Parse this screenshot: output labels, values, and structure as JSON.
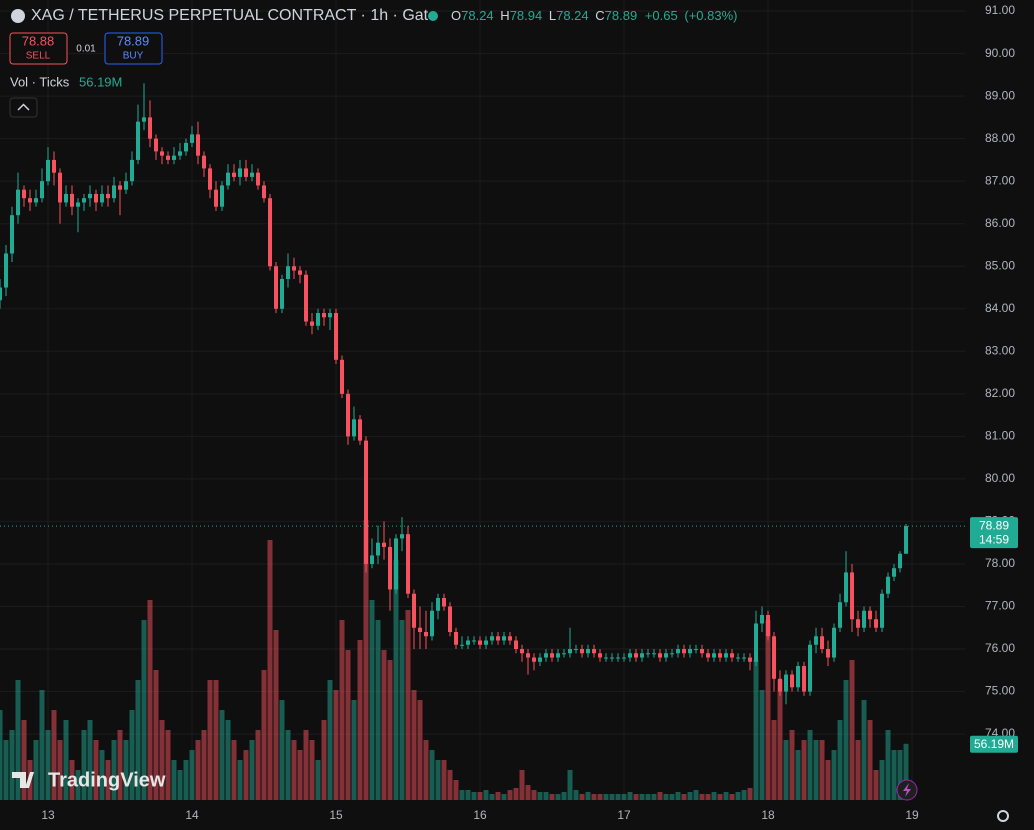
{
  "chart_data": {
    "type": "candlestick",
    "title": "XAG / TETHERUS PERPETUAL CONTRACT · 1h · Gate",
    "header": {
      "open_label": "O",
      "open": 78.24,
      "high_label": "H",
      "high": 78.94,
      "low_label": "L",
      "low": 78.24,
      "close_label": "C",
      "close": 78.89,
      "change": "+0.65",
      "change_pct": "(+0.83%)"
    },
    "sell": {
      "price": 78.88,
      "label": "SELL"
    },
    "spread": 0.01,
    "buy": {
      "price": 78.89,
      "label": "BUY"
    },
    "volume_title": "Vol · Ticks",
    "volume_label": "56.19M",
    "last_price": {
      "value": 78.89,
      "countdown": "14:59"
    },
    "watermark": "TradingView",
    "up_color": "#22ab94",
    "down_color": "#f7525f",
    "x": [
      -8,
      -7,
      -6,
      -5,
      -4,
      -3,
      -2,
      -1,
      0,
      1,
      2,
      3,
      4,
      5,
      6,
      7,
      8,
      9,
      10,
      11,
      12,
      13,
      14,
      15,
      16,
      17,
      18,
      19,
      20,
      21,
      22,
      23,
      24,
      25,
      26,
      27,
      28,
      29,
      30,
      31,
      32,
      33,
      34,
      35,
      36,
      37,
      38,
      39,
      40,
      41,
      42,
      43,
      44,
      45,
      46,
      47,
      48,
      49,
      50,
      51,
      52,
      53,
      54,
      55,
      56,
      57,
      58,
      59,
      60,
      61,
      62,
      63,
      64,
      65,
      66,
      67,
      68,
      69,
      70,
      71,
      72,
      73,
      74,
      75,
      76,
      77,
      78,
      79,
      80,
      81,
      82,
      83,
      84,
      85,
      86,
      87,
      88,
      89,
      90,
      91,
      92,
      93,
      94,
      95,
      96,
      97,
      98,
      99,
      100,
      101,
      102,
      103,
      104,
      105,
      106,
      107,
      108,
      109,
      110,
      111,
      112,
      113,
      114,
      115,
      116,
      117,
      118,
      119,
      120,
      121,
      122,
      123,
      124,
      125,
      126,
      127,
      128,
      129,
      130,
      131,
      132,
      133,
      134,
      135,
      136,
      137,
      138,
      139,
      140,
      141,
      142,
      143
    ],
    "open": [
      84.2,
      84.5,
      85.3,
      86.2,
      86.8,
      86.6,
      86.5,
      86.6,
      87.0,
      87.5,
      87.2,
      86.5,
      86.7,
      86.4,
      86.5,
      86.6,
      86.7,
      86.5,
      86.7,
      86.6,
      86.9,
      86.8,
      87.0,
      87.5,
      88.4,
      88.5,
      88.0,
      87.7,
      87.6,
      87.5,
      87.6,
      87.7,
      87.9,
      88.1,
      87.6,
      87.3,
      86.8,
      86.4,
      86.9,
      87.2,
      87.1,
      87.3,
      87.1,
      87.2,
      86.9,
      86.6,
      85.0,
      84.0,
      84.7,
      85.0,
      84.9,
      84.8,
      83.7,
      83.6,
      83.9,
      83.8,
      83.9,
      82.8,
      82.0,
      81.0,
      81.4,
      80.9,
      78.0,
      78.2,
      78.5,
      78.4,
      77.4,
      78.6,
      78.7,
      77.3,
      76.5,
      76.4,
      76.3,
      76.9,
      77.2,
      77.0,
      76.4,
      76.1,
      76.1,
      76.2,
      76.2,
      76.1,
      76.2,
      76.3,
      76.2,
      76.3,
      76.2,
      76.0,
      75.9,
      75.8,
      75.7,
      75.8,
      75.9,
      75.8,
      75.9,
      75.9,
      76.0,
      76.0,
      75.9,
      76.0,
      75.9,
      75.8,
      75.8,
      75.8,
      75.8,
      75.8,
      75.9,
      75.8,
      75.9,
      75.9,
      75.9,
      75.8,
      75.9,
      75.9,
      76.0,
      75.9,
      76.0,
      76.0,
      75.9,
      75.8,
      75.9,
      75.8,
      75.9,
      75.8,
      75.8,
      75.8,
      75.7,
      76.6,
      76.8,
      76.3,
      75.3,
      75.0,
      75.4,
      75.1,
      75.6,
      75.0,
      76.1,
      76.3,
      76.0,
      75.8,
      76.5,
      77.1,
      77.8,
      76.7,
      76.5,
      76.9,
      76.7,
      76.5,
      77.3,
      77.7,
      77.9,
      78.24
    ],
    "high": [
      84.7,
      85.5,
      86.4,
      87.2,
      86.9,
      86.8,
      86.8,
      87.3,
      87.8,
      87.7,
      87.3,
      86.9,
      86.9,
      86.6,
      86.7,
      86.9,
      86.8,
      86.9,
      86.9,
      87.1,
      87.0,
      87.2,
      87.7,
      88.8,
      89.3,
      88.9,
      88.1,
      87.8,
      87.7,
      87.8,
      87.9,
      88.0,
      88.3,
      88.4,
      87.7,
      87.4,
      87.0,
      87.0,
      87.4,
      87.4,
      87.5,
      87.5,
      87.4,
      87.3,
      87.0,
      86.7,
      85.1,
      84.8,
      85.3,
      85.2,
      85.0,
      84.9,
      83.9,
      84.0,
      84.0,
      84.0,
      84.0,
      82.9,
      82.1,
      81.7,
      81.5,
      81.0,
      78.6,
      78.9,
      79.0,
      78.6,
      78.7,
      79.1,
      78.9,
      77.4,
      77.0,
      76.9,
      77.1,
      77.3,
      77.3,
      77.1,
      76.5,
      76.3,
      76.3,
      76.3,
      76.3,
      76.3,
      76.4,
      76.4,
      76.4,
      76.4,
      76.3,
      76.1,
      76.0,
      75.9,
      75.9,
      76.0,
      76.0,
      76.0,
      76.0,
      76.5,
      76.1,
      76.1,
      76.1,
      76.1,
      76.0,
      75.9,
      75.9,
      75.9,
      75.9,
      76.0,
      76.0,
      76.0,
      76.0,
      76.0,
      76.0,
      76.0,
      76.0,
      76.1,
      76.1,
      76.1,
      76.1,
      76.1,
      76.0,
      76.0,
      76.0,
      76.0,
      76.0,
      75.9,
      75.9,
      75.9,
      76.9,
      77.0,
      76.9,
      76.4,
      75.5,
      75.5,
      75.5,
      75.7,
      75.7,
      76.2,
      76.5,
      76.5,
      76.2,
      76.6,
      77.3,
      78.3,
      78.0,
      76.9,
      77.0,
      77.0,
      76.9,
      77.4,
      77.8,
      78.0,
      78.3,
      78.94
    ],
    "low": [
      84.0,
      84.3,
      85.1,
      86.0,
      86.4,
      86.3,
      86.4,
      86.5,
      86.9,
      86.9,
      86.0,
      86.4,
      86.2,
      85.8,
      86.3,
      86.4,
      86.3,
      86.4,
      86.4,
      86.5,
      86.2,
      86.7,
      86.9,
      87.4,
      88.2,
      87.8,
      87.5,
      87.4,
      87.4,
      87.4,
      87.5,
      87.6,
      87.8,
      87.4,
      87.1,
      86.6,
      86.3,
      86.3,
      86.8,
      87.0,
      86.9,
      87.0,
      87.0,
      86.8,
      86.5,
      84.9,
      83.9,
      83.9,
      84.5,
      84.7,
      84.6,
      83.6,
      83.4,
      83.5,
      83.6,
      83.5,
      82.7,
      81.9,
      80.8,
      80.9,
      80.8,
      77.8,
      77.9,
      78.0,
      78.1,
      76.9,
      77.3,
      78.3,
      77.2,
      76.0,
      76.0,
      76.0,
      76.2,
      76.7,
      76.9,
      76.3,
      76.0,
      76.0,
      76.0,
      76.1,
      76.0,
      76.0,
      76.1,
      76.1,
      76.1,
      76.1,
      75.9,
      75.7,
      75.4,
      75.5,
      75.6,
      75.7,
      75.7,
      75.7,
      75.8,
      75.8,
      75.9,
      75.8,
      75.8,
      75.8,
      75.7,
      75.7,
      75.7,
      75.7,
      75.7,
      75.7,
      75.7,
      75.7,
      75.8,
      75.8,
      75.7,
      75.7,
      75.8,
      75.8,
      75.8,
      75.8,
      75.9,
      75.8,
      75.7,
      75.7,
      75.7,
      75.7,
      75.7,
      75.7,
      75.7,
      75.5,
      75.6,
      76.4,
      76.2,
      75.0,
      74.9,
      74.7,
      75.0,
      75.0,
      74.9,
      74.9,
      75.9,
      75.9,
      75.6,
      75.7,
      76.4,
      77.0,
      76.4,
      76.3,
      76.4,
      76.5,
      76.4,
      76.4,
      77.2,
      77.6,
      77.8,
      78.24
    ],
    "close": [
      84.5,
      85.3,
      86.2,
      86.8,
      86.6,
      86.5,
      86.6,
      87.0,
      87.5,
      87.2,
      86.5,
      86.7,
      86.4,
      86.5,
      86.6,
      86.7,
      86.5,
      86.7,
      86.6,
      86.9,
      86.8,
      87.0,
      87.5,
      88.4,
      88.5,
      88.0,
      87.7,
      87.6,
      87.5,
      87.6,
      87.7,
      87.9,
      88.1,
      87.6,
      87.3,
      86.8,
      86.4,
      86.9,
      87.2,
      87.1,
      87.3,
      87.1,
      87.2,
      86.9,
      86.6,
      85.0,
      84.0,
      84.7,
      85.0,
      84.9,
      84.8,
      83.7,
      83.6,
      83.9,
      83.8,
      83.9,
      82.8,
      82.0,
      81.0,
      81.4,
      80.9,
      78.0,
      78.2,
      78.5,
      78.4,
      77.4,
      78.6,
      78.7,
      77.3,
      76.5,
      76.4,
      76.3,
      76.9,
      77.2,
      77.0,
      76.4,
      76.1,
      76.1,
      76.2,
      76.2,
      76.1,
      76.2,
      76.3,
      76.2,
      76.3,
      76.2,
      76.0,
      75.9,
      75.8,
      75.7,
      75.8,
      75.9,
      75.8,
      75.9,
      75.9,
      76.0,
      76.0,
      75.9,
      76.0,
      75.9,
      75.8,
      75.8,
      75.8,
      75.8,
      75.8,
      75.9,
      75.8,
      75.9,
      75.9,
      75.9,
      75.8,
      75.9,
      75.9,
      76.0,
      75.9,
      76.0,
      76.0,
      75.9,
      75.8,
      75.9,
      75.8,
      75.9,
      75.8,
      75.8,
      75.8,
      75.7,
      76.6,
      76.8,
      76.3,
      75.3,
      75.0,
      75.4,
      75.1,
      75.6,
      75.0,
      76.1,
      76.3,
      76.0,
      75.8,
      76.5,
      77.1,
      77.8,
      76.7,
      76.5,
      76.9,
      76.7,
      76.5,
      77.3,
      77.7,
      77.9,
      78.24,
      78.89
    ],
    "volume": [
      90,
      60,
      70,
      120,
      80,
      40,
      60,
      110,
      70,
      90,
      60,
      80,
      40,
      30,
      70,
      80,
      60,
      50,
      40,
      60,
      70,
      60,
      90,
      120,
      180,
      200,
      130,
      80,
      70,
      40,
      30,
      40,
      50,
      60,
      70,
      120,
      120,
      90,
      80,
      60,
      40,
      50,
      60,
      70,
      130,
      260,
      170,
      100,
      70,
      60,
      50,
      70,
      60,
      40,
      80,
      120,
      110,
      180,
      150,
      100,
      160,
      280,
      200,
      180,
      150,
      140,
      240,
      180,
      190,
      110,
      100,
      60,
      50,
      40,
      40,
      30,
      20,
      10,
      10,
      8,
      8,
      10,
      6,
      8,
      6,
      10,
      12,
      30,
      15,
      10,
      8,
      8,
      6,
      6,
      8,
      30,
      10,
      6,
      8,
      6,
      6,
      6,
      6,
      6,
      6,
      8,
      6,
      6,
      6,
      6,
      8,
      6,
      6,
      8,
      6,
      8,
      10,
      6,
      6,
      8,
      6,
      8,
      6,
      8,
      10,
      12,
      140,
      110,
      180,
      80,
      120,
      60,
      70,
      50,
      60,
      70,
      60,
      60,
      40,
      50,
      80,
      120,
      140,
      60,
      100,
      80,
      30,
      40,
      70,
      50,
      50,
      56.19
    ],
    "xlim": [
      -8,
      152.83
    ],
    "xticks": [
      {
        "value": 0,
        "label": "13"
      },
      {
        "value": 24,
        "label": "14"
      },
      {
        "value": 48,
        "label": "15"
      },
      {
        "value": 72,
        "label": "16"
      },
      {
        "value": 96,
        "label": "17"
      },
      {
        "value": 120,
        "label": "18"
      },
      {
        "value": 144,
        "label": "19"
      }
    ],
    "ylim": [
      72.45,
      91.26
    ],
    "yticks": [
      {
        "value": 74,
        "label": "74.00"
      },
      {
        "value": 75,
        "label": "75.00"
      },
      {
        "value": 76,
        "label": "76.00"
      },
      {
        "value": 77,
        "label": "77.00"
      },
      {
        "value": 78,
        "label": "78.00"
      },
      {
        "value": 79,
        "label": "79.00"
      },
      {
        "value": 80,
        "label": "80.00"
      },
      {
        "value": 81,
        "label": "81.00"
      },
      {
        "value": 82,
        "label": "82.00"
      },
      {
        "value": 83,
        "label": "83.00"
      },
      {
        "value": 84,
        "label": "84.00"
      },
      {
        "value": 85,
        "label": "85.00"
      },
      {
        "value": 86,
        "label": "86.00"
      },
      {
        "value": 87,
        "label": "87.00"
      },
      {
        "value": 88,
        "label": "88.00"
      },
      {
        "value": 89,
        "label": "89.00"
      },
      {
        "value": 90,
        "label": "90.00"
      },
      {
        "value": 91,
        "label": "91.00"
      }
    ],
    "volume_lim": [
      0,
      400
    ],
    "grid": true
  }
}
